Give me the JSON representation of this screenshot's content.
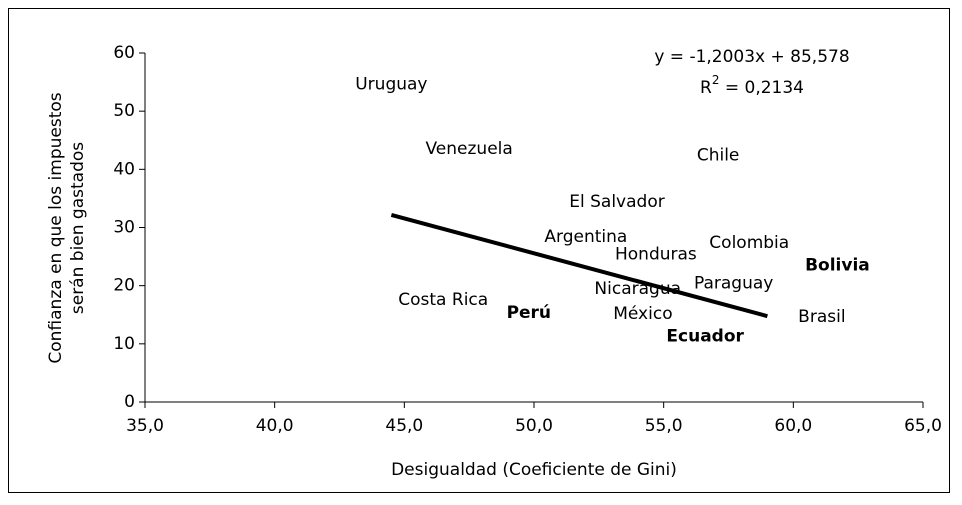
{
  "chart_data": {
    "type": "scatter",
    "x_label": "Desigualdad (Coeficiente de Gini)",
    "y_label": [
      "Confianza en que los impuestos",
      "serán bien gastados"
    ],
    "xlim": [
      35,
      65
    ],
    "xticks": [
      {
        "value": 35,
        "label": "35,0"
      },
      {
        "value": 40,
        "label": "40,0"
      },
      {
        "value": 45,
        "label": "45,0"
      },
      {
        "value": 50,
        "label": "50,0"
      },
      {
        "value": 55,
        "label": "55,0"
      },
      {
        "value": 60,
        "label": "60,0"
      },
      {
        "value": 65,
        "label": "65,0"
      }
    ],
    "ylim": [
      0,
      60
    ],
    "yticks": [
      0,
      10,
      20,
      30,
      40,
      50,
      60
    ],
    "series": [
      {
        "labels": [
          "Uruguay",
          "Venezuela",
          "Chile",
          "El Salvador",
          "Argentina",
          "Honduras",
          "Colombia",
          "Bolivia",
          "Paraguay",
          "Nicaragua",
          "Costa Rica",
          "Perú",
          "México",
          "Ecuador",
          "Brasil"
        ],
        "x": [
          44.5,
          47.5,
          57.1,
          53.2,
          52.0,
          54.7,
          58.3,
          61.7,
          57.7,
          54.0,
          46.5,
          49.8,
          54.2,
          56.6,
          61.1
        ],
        "y": [
          54.6,
          43.5,
          42.4,
          34.4,
          28.4,
          25.4,
          27.3,
          23.5,
          20.4,
          19.4,
          17.5,
          15.3,
          15.1,
          11.3,
          14.6
        ],
        "bold": [
          false,
          false,
          false,
          false,
          false,
          false,
          false,
          true,
          false,
          false,
          false,
          true,
          false,
          true,
          false
        ],
        "color": "#000000"
      }
    ],
    "trendline": {
      "slope": -1.2003,
      "intercept": 85.578,
      "x_range": [
        44.5,
        59.0
      ],
      "color": "#000000"
    },
    "equation": "y = -1,2003x + 85,578",
    "r2": {
      "base": "R",
      "sup": "2",
      "rest": " = 0,2134"
    }
  }
}
